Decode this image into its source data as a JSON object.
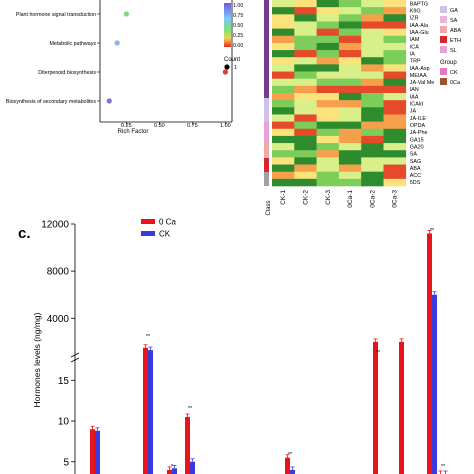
{
  "chart_data": [
    {
      "type": "scatter",
      "xlabel": "Rich Factor",
      "x_ticks": [
        "0.25",
        "0.50",
        "0.75",
        "1.00"
      ],
      "xlim": [
        0.05,
        1.05
      ],
      "points": [
        {
          "label": "Plant hormone signal transduction",
          "x": 0.25,
          "color": "#7dd87a"
        },
        {
          "label": "Metabolic pathways",
          "x": 0.18,
          "color": "#8ab0e6"
        },
        {
          "label": "Diterpenoid biosynthesis",
          "x": 1.0,
          "color": "#e0402c"
        },
        {
          "label": "Biosynthesis of secondary metabolites",
          "x": 0.12,
          "color": "#8a6fd0"
        }
      ],
      "color_legend": [
        "1.00",
        "0.75",
        "0.50",
        "0.25",
        "0.00"
      ],
      "count_legend": {
        "title": "Count",
        "value": "1"
      }
    },
    {
      "type": "heatmap",
      "columns": [
        "CK-1",
        "CK-2",
        "CK-3",
        "0Ca-1",
        "0Ca-2",
        "0Ca-3"
      ],
      "rows": [
        "BAPTG",
        "K9G",
        "IZR",
        "IAA-Ala",
        "IAA-Glu",
        "IAM",
        "ICA",
        "IA",
        "TRP",
        "IAA-Asp",
        "MEIAA",
        "JA-Val Me",
        "IAN",
        "IAA",
        "ICAld",
        "JA",
        "JA-ILE",
        "OPDA",
        "JA-Phe",
        "GA15",
        "GA20",
        "SA",
        "SAG",
        "ABA",
        "ACC",
        "5DS"
      ],
      "class_label": "Class",
      "group_legend": {
        "title": "Group",
        "items": [
          {
            "label": "CK",
            "color": "#e377c2"
          },
          {
            "label": "0Ca",
            "color": "#a0522d"
          }
        ]
      },
      "class_legend": [
        {
          "label": "GA",
          "color": "#cfc1e8"
        },
        {
          "label": "SA",
          "color": "#e8b6d6"
        },
        {
          "label": "ABA",
          "color": "#f0a9a4"
        },
        {
          "label": "ETH",
          "color": "#d6282a"
        },
        {
          "label": "SL",
          "color": "#e8a0d8"
        }
      ]
    },
    {
      "type": "bar",
      "panel_label": "c.",
      "ylabel": "Hormones levels (ng/mg)",
      "upper_ticks": [
        "12000",
        "8000",
        "4000"
      ],
      "lower_ticks": [
        "15",
        "10",
        "5"
      ],
      "series": [
        {
          "name": "0 Ca",
          "color": "#e8141b",
          "values": [
            9.0,
            1500,
            4.0,
            10.5,
            5.5,
            2000,
            2000,
            11200,
            3.5
          ]
        },
        {
          "name": "CK",
          "color": "#3a3ae0",
          "values": [
            8.8,
            1300,
            4.2,
            5.0,
            4.0,
            0,
            0,
            6000,
            3.5
          ]
        }
      ],
      "sig_marks": [
        "**",
        "*",
        "**",
        "**",
        "**",
        "**",
        "**"
      ]
    }
  ]
}
